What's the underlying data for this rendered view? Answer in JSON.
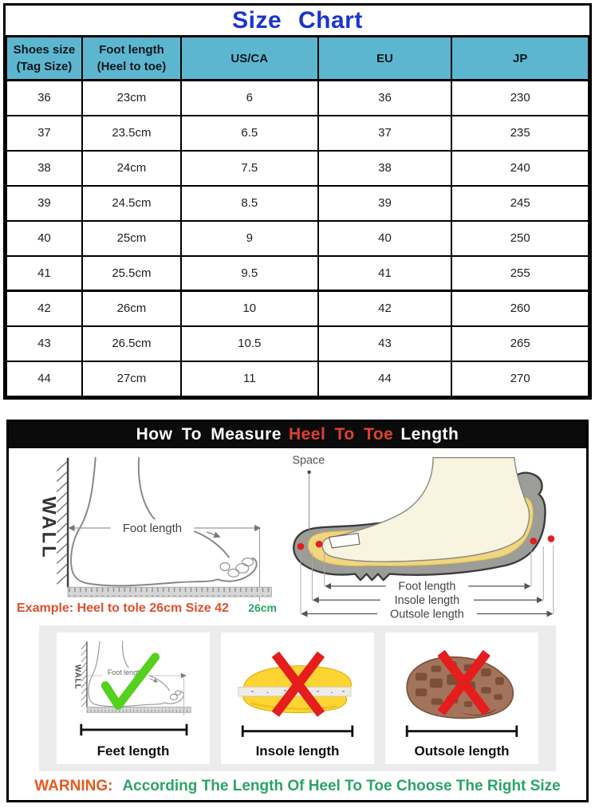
{
  "title": "Size Chart",
  "table": {
    "headers": [
      {
        "line1": "Shoes size",
        "line2": "(Tag Size)"
      },
      {
        "line1": "Foot length",
        "line2": "(Heel to toe)"
      },
      {
        "line1": "US/CA",
        "line2": ""
      },
      {
        "line1": "EU",
        "line2": ""
      },
      {
        "line1": "JP",
        "line2": ""
      }
    ],
    "rows": [
      [
        "36",
        "23cm",
        "6",
        "36",
        "230"
      ],
      [
        "37",
        "23.5cm",
        "6.5",
        "37",
        "235"
      ],
      [
        "38",
        "24cm",
        "7.5",
        "38",
        "240"
      ],
      [
        "39",
        "24.5cm",
        "8.5",
        "39",
        "245"
      ],
      [
        "40",
        "25cm",
        "9",
        "40",
        "250"
      ],
      [
        "41",
        "25.5cm",
        "9.5",
        "41",
        "255"
      ],
      [
        "42",
        "26cm",
        "10",
        "42",
        "260"
      ],
      [
        "43",
        "26.5cm",
        "10.5",
        "43",
        "265"
      ],
      [
        "44",
        "27cm",
        "11",
        "44",
        "270"
      ]
    ]
  },
  "guide": {
    "header": {
      "part1": "How To Measure",
      "highlight": "Heel To Toe",
      "part2": "Length"
    },
    "wall_label": "WALL",
    "foot_length_label": "Foot length",
    "space_label": "Space",
    "dim_labels": {
      "foot": "Foot length",
      "insole": "Insole length",
      "outsole": "Outsole length"
    },
    "example_text": "Example: Heel to tole 26cm Size 42",
    "example_cm": "26cm",
    "cards": [
      {
        "label": "Feet length"
      },
      {
        "label": "Insole length"
      },
      {
        "label": "Outsole length"
      }
    ],
    "warning_label": "WARNING:",
    "warning_text": "According The Length Of Heel To Toe Choose The Right Size"
  },
  "colors": {
    "title_blue": "#1b35cf",
    "header_bg": "#5db6cf",
    "bar_highlight_red": "#e0402e",
    "example_orange": "#e0502d",
    "green": "#2aa566",
    "warning_orange": "#e8581f",
    "check_green": "#54d11c",
    "cross_red": "#e51d1d",
    "insole_yellow": "#fdd431",
    "outsole_brown": "#a3745b"
  }
}
